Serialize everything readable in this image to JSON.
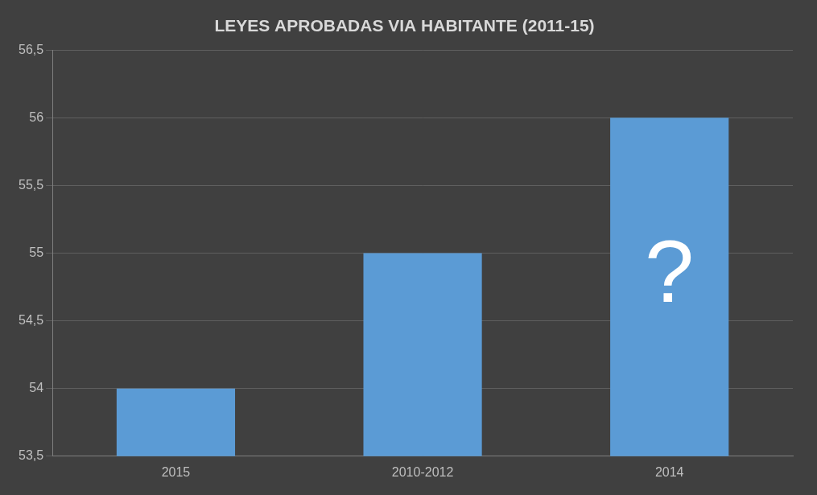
{
  "chart_data": {
    "type": "bar",
    "title": "LEYES APROBADAS VIA HABITANTE (2011-15)",
    "categories": [
      "2015",
      "2010-2012",
      "2014"
    ],
    "values": [
      54,
      55,
      56
    ],
    "color": "#5b9bd5",
    "ylim": [
      53.5,
      56.5
    ],
    "yticks": [
      {
        "value": 53.5,
        "label": "53,5"
      },
      54,
      {
        "value": 54.5,
        "label": "54,5"
      },
      55,
      {
        "value": 55.5,
        "label": "55,5"
      },
      56,
      {
        "value": 56.5,
        "label": "56,5"
      }
    ],
    "grid": true,
    "annotation": "?"
  }
}
